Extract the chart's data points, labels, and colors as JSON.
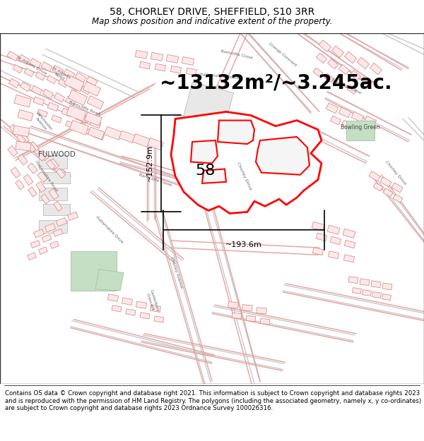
{
  "title": "58, CHORLEY DRIVE, SHEFFIELD, S10 3RR",
  "subtitle": "Map shows position and indicative extent of the property.",
  "area_text": "~13132m²/~3.245ac.",
  "label_58": "58",
  "dim_width": "~193.6m",
  "dim_height": "~152.9m",
  "footer": "Contains OS data © Crown copyright and database right 2021. This information is subject to Crown copyright and database rights 2023 and is reproduced with the permission of HM Land Registry. The polygons (including the associated geometry, namely x, y co-ordinates) are subject to Crown copyright and database rights 2023 Ordnance Survey 100026316.",
  "title_fontsize": 10,
  "subtitle_fontsize": 8.5,
  "area_fontsize": 20,
  "label_fontsize": 16,
  "footer_fontsize": 6.2,
  "dim_fontsize": 8,
  "figsize": [
    6.0,
    6.25
  ],
  "dpi": 100,
  "road_color_gray": "#c8c8c8",
  "road_color_red": "#e8a0a0",
  "bldg_fill_gray": "#e8e8e8",
  "bldg_fill_red": "#fce8e8",
  "bldg_edge_gray": "#b0b0b0",
  "bldg_edge_red": "#d08080",
  "prop_edge": "#ff0000",
  "prop_fill": "#ffffff",
  "green_fill": "#c5dfc5",
  "green_edge": "#99bb99"
}
